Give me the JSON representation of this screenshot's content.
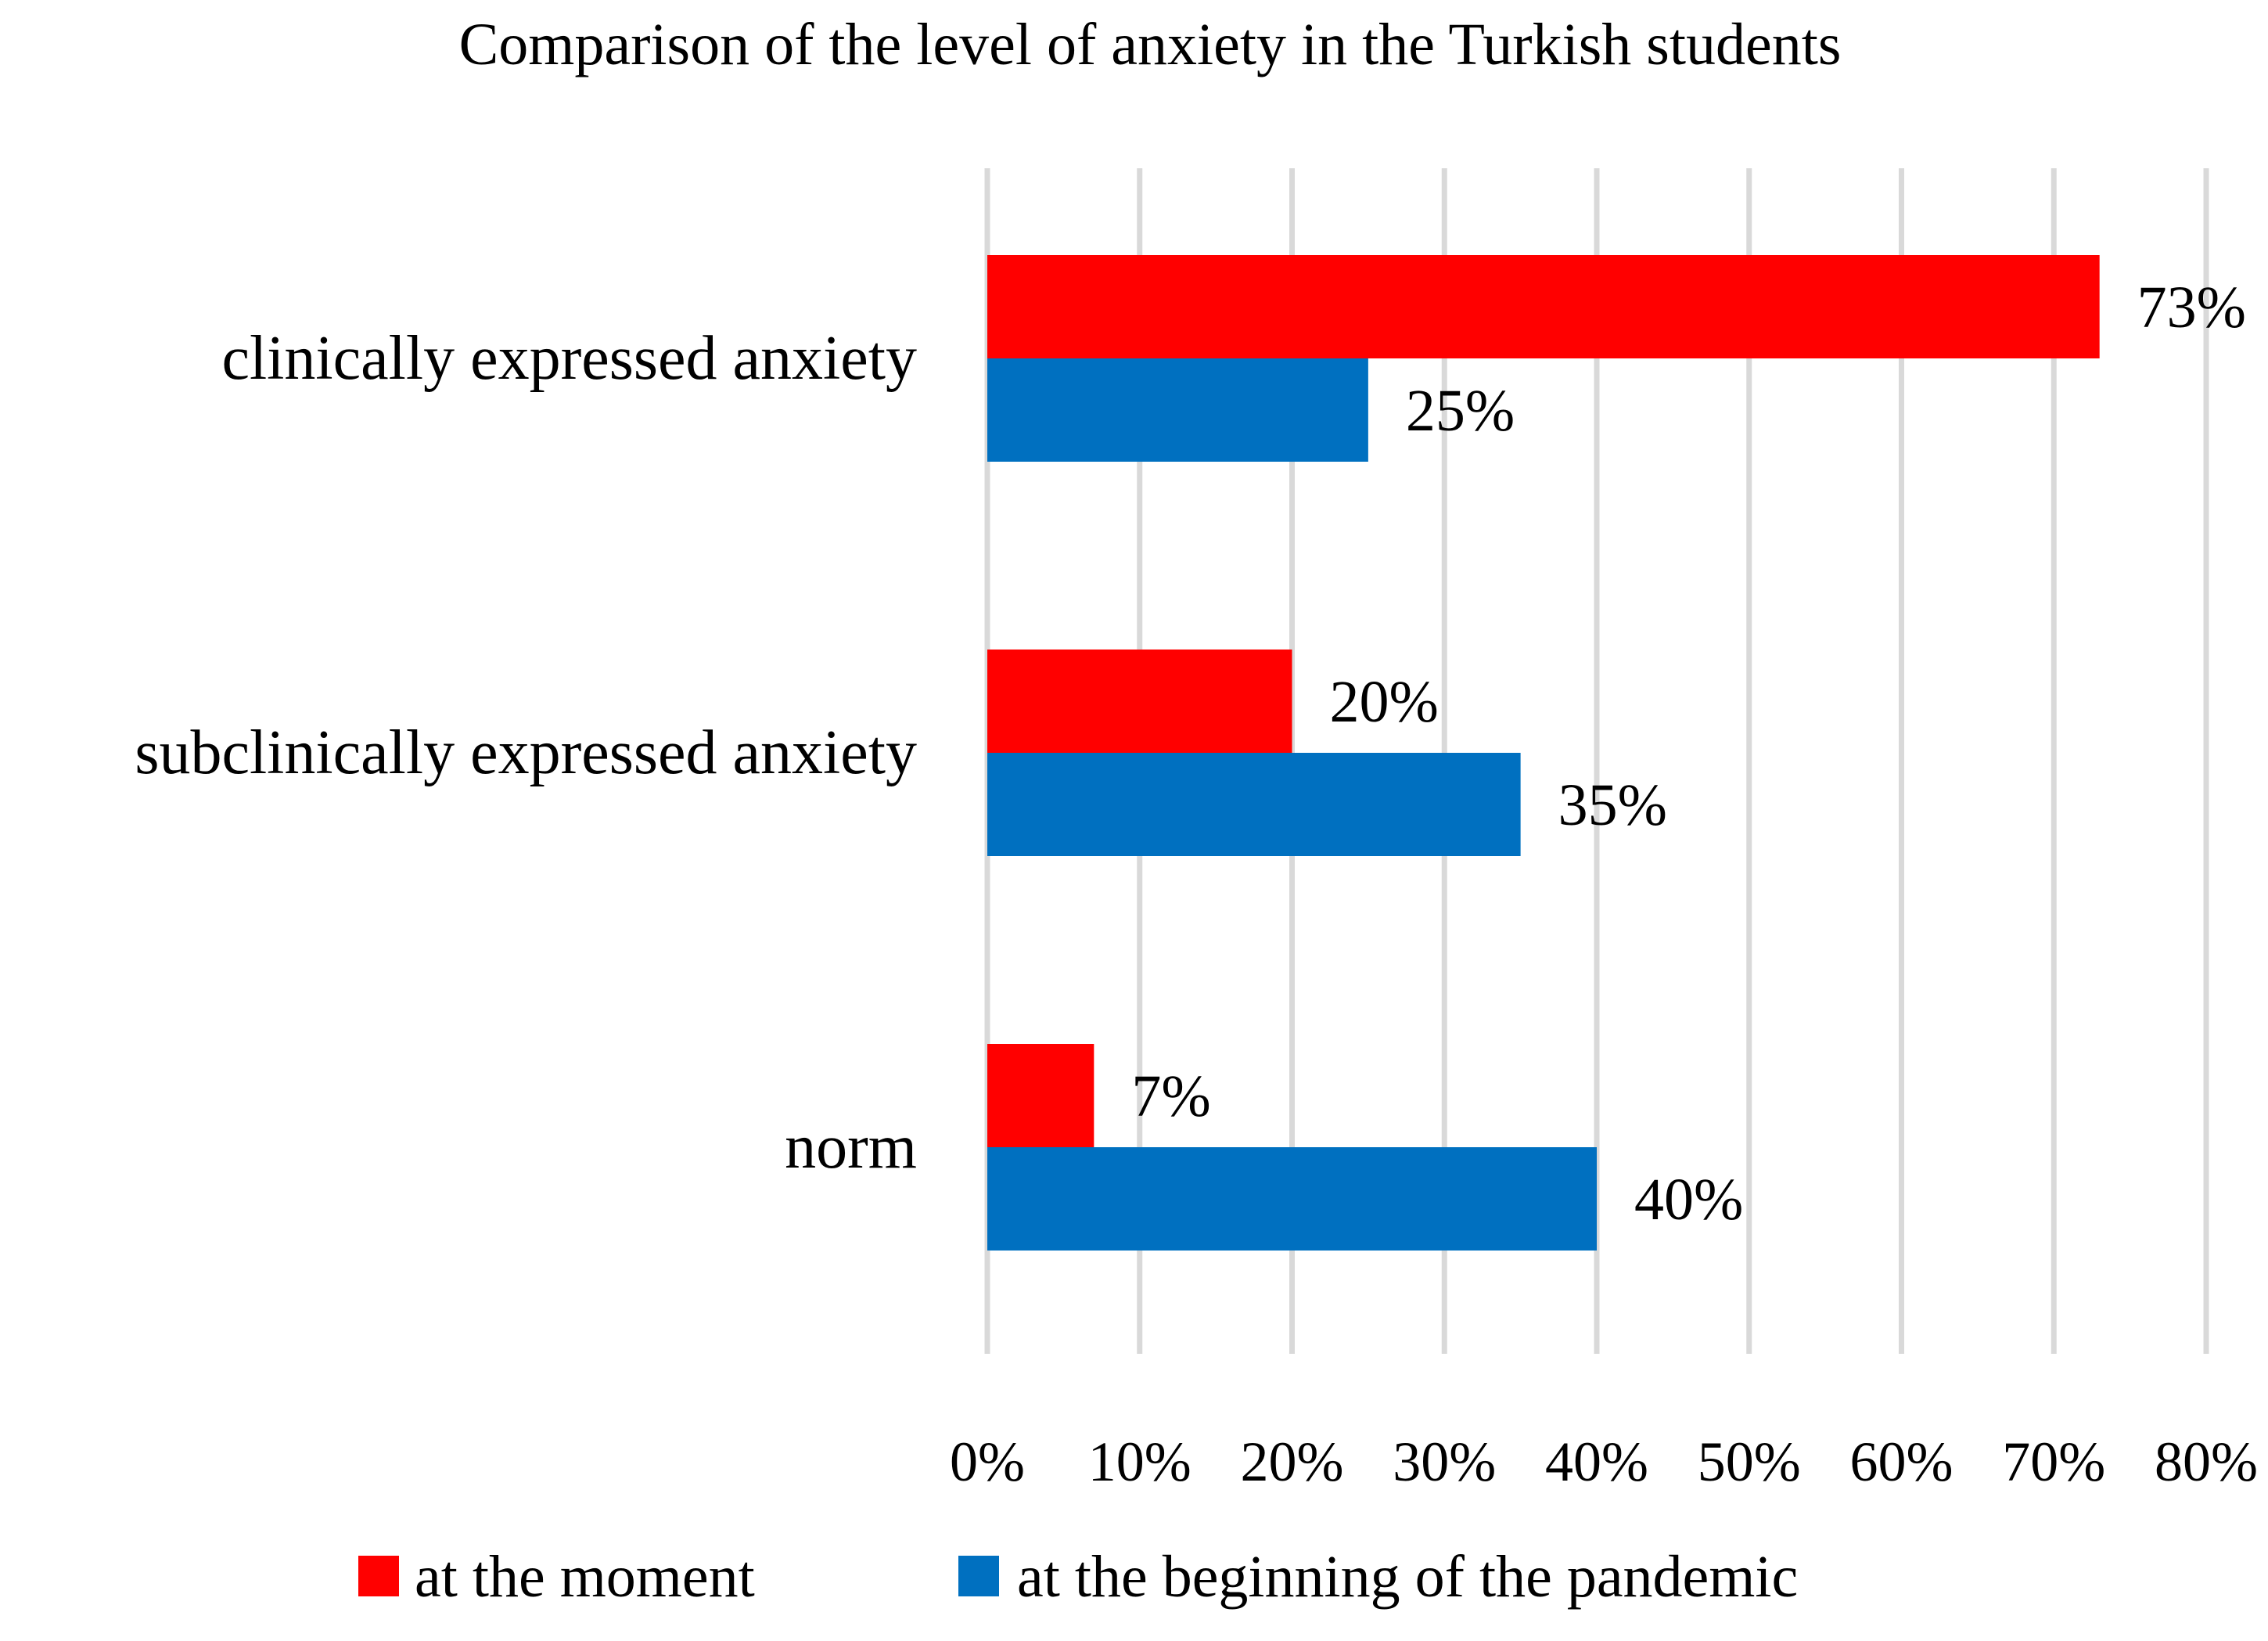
{
  "chart_data": {
    "type": "bar",
    "orientation": "horizontal",
    "title": "Comparison of the level of anxiety in the Turkish students",
    "categories": [
      "clinically expressed anxiety",
      "subclinically expressed anxiety",
      "norm"
    ],
    "series": [
      {
        "name": "at the moment",
        "color": "#ff0000",
        "values": [
          73,
          20,
          7
        ],
        "labels": [
          "73%",
          "20%",
          "7%"
        ]
      },
      {
        "name": "at the beginning of the pandemic",
        "color": "#0070c0",
        "values": [
          25,
          35,
          40
        ],
        "labels": [
          "25%",
          "35%",
          "40%"
        ]
      }
    ],
    "xlim": [
      0,
      80
    ],
    "x_ticks": [
      0,
      10,
      20,
      30,
      40,
      50,
      60,
      70,
      80
    ],
    "x_tick_labels": [
      "0%",
      "10%",
      "20%",
      "30%",
      "40%",
      "50%",
      "60%",
      "70%",
      "80%"
    ],
    "grid": true,
    "grid_color": "#d9d9d9",
    "legend_position": "bottom"
  }
}
